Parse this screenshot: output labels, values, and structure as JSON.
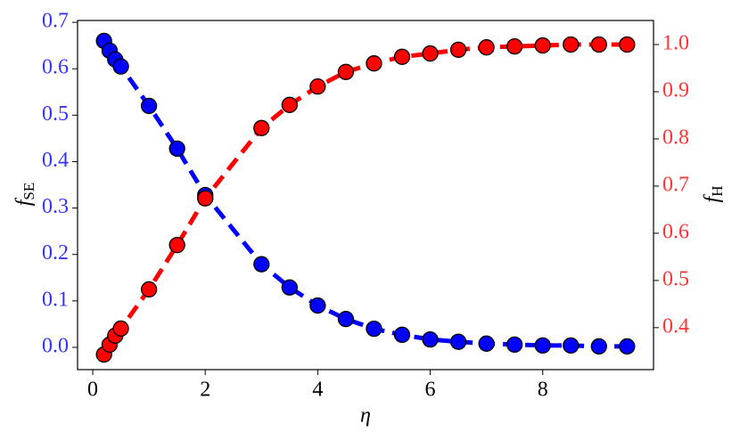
{
  "chart_data": {
    "type": "line",
    "xlabel": "η",
    "ylabel": {
      "text": "f",
      "subscript": "SE"
    },
    "y2label": {
      "text": "f",
      "subscript": "H"
    },
    "x": [
      0.2,
      0.3,
      0.4,
      0.5,
      1,
      1.5,
      2,
      3,
      3.5,
      4,
      4.5,
      5,
      5.5,
      6,
      6.5,
      7,
      7.5,
      8,
      8.5,
      9,
      9.5
    ],
    "series": [
      {
        "name": "fSE",
        "color": "#0000ff",
        "axis": "y",
        "values": [
          0.66,
          0.639,
          0.62,
          0.605,
          0.52,
          0.428,
          0.328,
          0.179,
          0.129,
          0.09,
          0.061,
          0.04,
          0.027,
          0.017,
          0.012,
          0.008,
          0.006,
          0.004,
          0.004,
          0.002,
          0.002
        ]
      },
      {
        "name": "fH",
        "color": "#ff0000",
        "axis": "y2",
        "values": [
          0.343,
          0.364,
          0.383,
          0.398,
          0.481,
          0.575,
          0.674,
          0.823,
          0.872,
          0.911,
          0.942,
          0.96,
          0.974,
          0.981,
          0.989,
          0.994,
          0.996,
          0.998,
          1.0,
          1.0,
          1.0
        ]
      }
    ],
    "xlim": [
      -0.27,
      9.97
    ],
    "xticks": [
      0,
      2,
      4,
      6,
      8
    ],
    "ylim": [
      -0.048,
      0.704
    ],
    "yticks": [
      {
        "value": 0,
        "label": "0.0"
      },
      0.1,
      0.2,
      0.3,
      0.4,
      0.5,
      0.6,
      0.7
    ],
    "y2lim": [
      0.311,
      1.051
    ],
    "y2ticks": [
      0.4,
      0.5,
      0.6,
      0.7,
      0.8,
      0.9,
      {
        "value": 1,
        "label": "1.0"
      }
    ],
    "grid": false
  }
}
